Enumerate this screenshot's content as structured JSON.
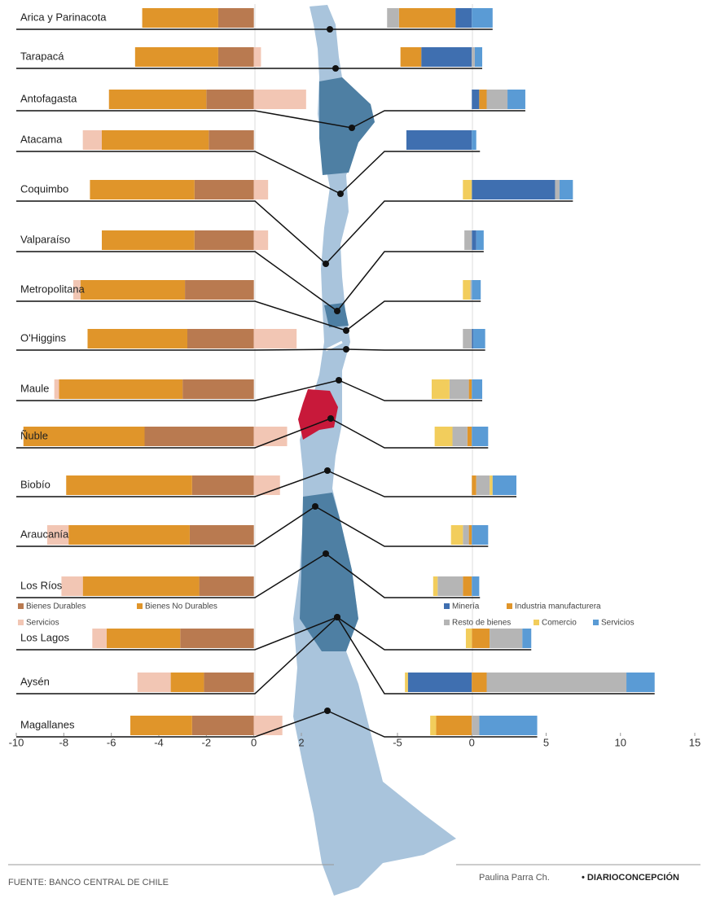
{
  "chart_data": [
    {
      "type": "bar",
      "categories": [
        "Arica y Parinacota",
        "Tarapacá",
        "Antofagasta",
        "Atacama",
        "Coquimbo",
        "Valparaíso",
        "Metropolitana",
        "O'Higgins",
        "Maule",
        "Ñuble",
        "Biobío",
        "Araucanía",
        "Los Ríos",
        "Los Lagos",
        "Aysén",
        "Magallanes"
      ],
      "xlim": [
        -10,
        2
      ],
      "xticks": [
        -10,
        -8,
        -6,
        -4,
        -2,
        0,
        2
      ],
      "series": [
        {
          "name": "Bienes Durables",
          "color": "#b97a50",
          "values": [
            -1.5,
            -1.5,
            -2.0,
            -1.9,
            -2.5,
            -2.5,
            -2.9,
            -2.8,
            -3.0,
            -4.6,
            -2.6,
            -2.7,
            -2.3,
            -3.1,
            -2.1,
            -2.6
          ]
        },
        {
          "name": "Bienes No Durables",
          "color": "#e0952a",
          "values": [
            -3.2,
            -3.5,
            -4.1,
            -4.5,
            -4.4,
            -3.9,
            -4.4,
            -4.2,
            -5.2,
            -5.1,
            -5.3,
            -5.1,
            -4.9,
            -3.1,
            -1.4,
            -2.6
          ]
        },
        {
          "name": "Servicios",
          "color": "#f2c6b4",
          "values": [
            0,
            0.3,
            2.2,
            -0.8,
            0.6,
            0.6,
            -0.3,
            1.8,
            -0.2,
            1.4,
            1.1,
            -0.9,
            -0.9,
            -0.6,
            -1.4,
            1.2
          ]
        }
      ]
    },
    {
      "type": "bar",
      "xlim": [
        -5,
        15
      ],
      "xticks": [
        -5,
        0,
        5,
        10,
        15
      ],
      "series": [
        {
          "name": "Minería",
          "color": "#3f6fb0",
          "values": [
            -1.1,
            -3.4,
            0.5,
            -4.4,
            5.6,
            0.3,
            0,
            0.1,
            0,
            0,
            0,
            0,
            0,
            0,
            -4.3,
            0
          ]
        },
        {
          "name": "Industria manufacturera",
          "color": "#e0952a",
          "values": [
            -3.8,
            -1.4,
            0.5,
            0,
            0,
            0,
            0,
            0,
            -0.2,
            -0.3,
            0.3,
            -0.2,
            -0.6,
            1.2,
            1.0,
            -2.4
          ]
        },
        {
          "name": "Resto de bienes",
          "color": "#b5b5b5",
          "values": [
            -0.8,
            0.2,
            1.4,
            0,
            0.3,
            -0.5,
            -0.1,
            -0.6,
            -1.3,
            -1.0,
            0.9,
            -0.4,
            -1.7,
            2.2,
            9.4,
            0.5
          ]
        },
        {
          "name": "Comercio",
          "color": "#f2cd5c",
          "values": [
            0,
            0,
            0,
            0,
            -0.6,
            0,
            -0.5,
            0,
            -1.2,
            -1.2,
            0.2,
            -0.8,
            -0.3,
            -0.4,
            -0.2,
            -0.4
          ]
        },
        {
          "name": "Servicios",
          "color": "#5a9bd5",
          "values": [
            1.4,
            0.5,
            1.2,
            0.3,
            0.9,
            0.5,
            0.6,
            0.8,
            0.7,
            1.1,
            1.6,
            1.1,
            0.5,
            0.6,
            1.9,
            3.9
          ]
        }
      ]
    }
  ],
  "footer": {
    "source": "FUENTE: BANCO CENTRAL DE CHILE",
    "author": "Paulina Parra Ch.",
    "publisher": "• DIARIOCONCEPCIÓN"
  }
}
